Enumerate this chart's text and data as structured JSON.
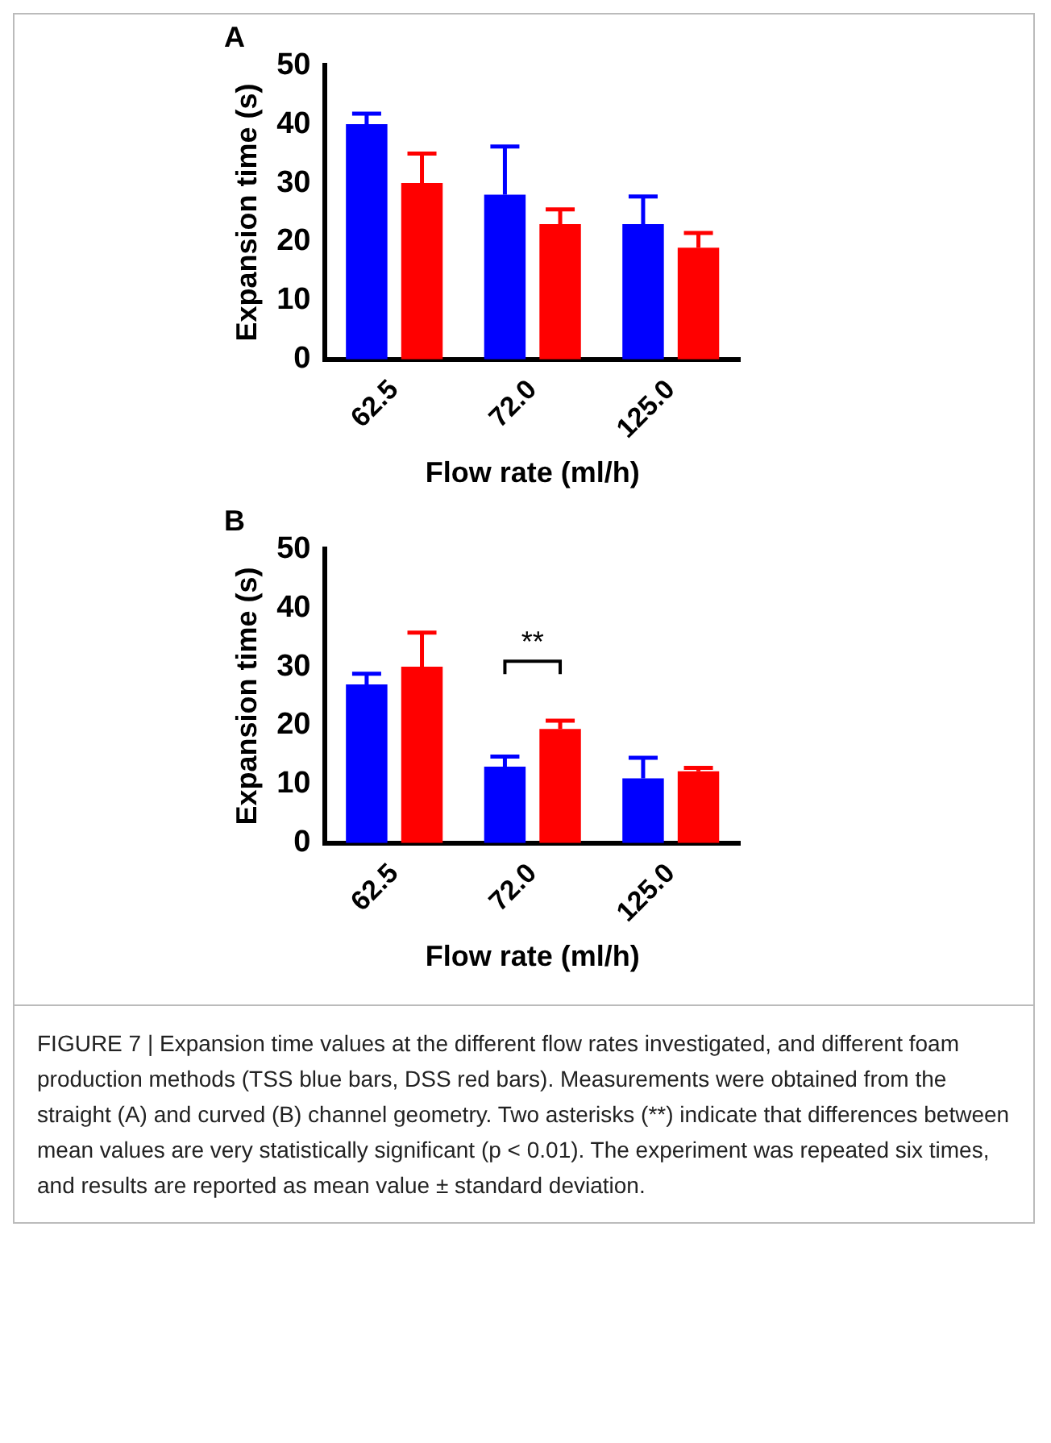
{
  "chart_data": [
    {
      "type": "bar",
      "title": "A",
      "xlabel": "Flow rate (ml/h)",
      "ylabel": "Expansion time (s)",
      "categories": [
        "62.5",
        "72.0",
        "125.0"
      ],
      "series": [
        {
          "color": "#0000ff",
          "values": [
            40,
            28,
            23
          ],
          "errors": [
            [
              40,
              41.8
            ],
            [
              28,
              36.2
            ],
            [
              23,
              27.7
            ]
          ]
        },
        {
          "color": "#ff0000",
          "values": [
            30,
            23,
            19
          ],
          "errors": [
            [
              30,
              35
            ],
            [
              23,
              25.5
            ],
            [
              19,
              21.5
            ]
          ]
        }
      ],
      "ylim": [
        0,
        50
      ],
      "yticks": [
        0,
        10,
        20,
        30,
        40,
        50
      ],
      "grid": false,
      "legend": false
    },
    {
      "type": "bar",
      "title": "B",
      "xlabel": "Flow rate (ml/h)",
      "ylabel": "Expansion time (s)",
      "categories": [
        "62.5",
        "72.0",
        "125.0"
      ],
      "series": [
        {
          "color": "#0000ff",
          "values": [
            27,
            13,
            11
          ],
          "errors": [
            [
              27,
              28.8
            ],
            [
              13,
              14.7
            ],
            [
              11,
              14.5
            ]
          ]
        },
        {
          "color": "#ff0000",
          "values": [
            30,
            19.4,
            12.2
          ],
          "errors": [
            [
              30,
              35.8
            ],
            [
              19.4,
              20.8
            ],
            [
              12.2,
              12.8
            ]
          ]
        }
      ],
      "ylim": [
        0,
        50
      ],
      "yticks": [
        0,
        10,
        20,
        30,
        40,
        50
      ],
      "grid": false,
      "legend": false,
      "annotations": [
        "**",
        "FIGURE 7 | Expansion time values at the different flow rates investigated, and different foam production methods (TSS blue bars, DSS red bars). Measurements were obtained from the straight (A) and curved (B) channel geometry. Two asterisks (**) indicate that differences between mean values are very statistically significant (p < 0.01). The experiment was repeated six times, and results are reported as mean value ± standard deviation."
      ]
    }
  ]
}
